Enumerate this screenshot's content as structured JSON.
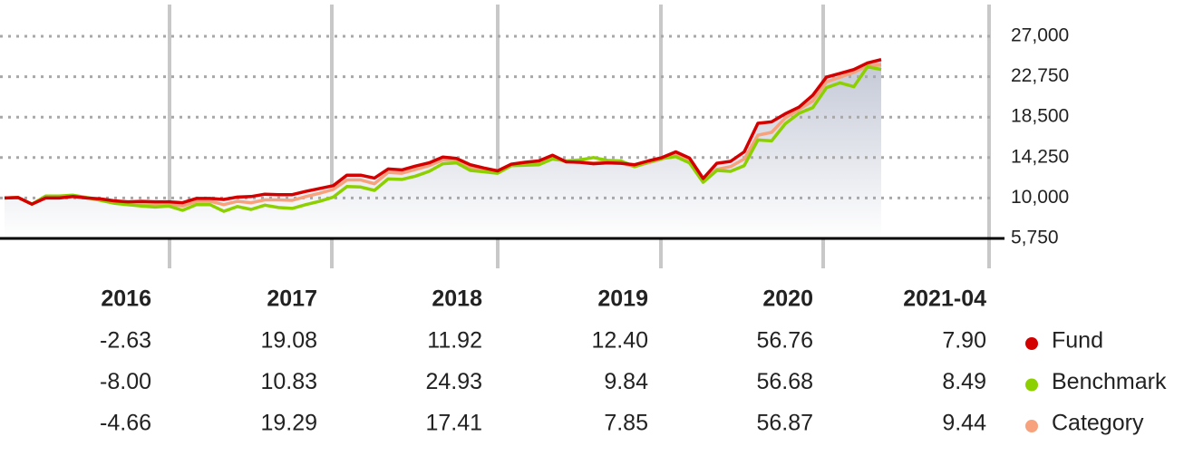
{
  "chart_data": {
    "type": "line",
    "categories": [
      null,
      null,
      null,
      null,
      null,
      null,
      null,
      null,
      null,
      null,
      null,
      null,
      null,
      null,
      null,
      null,
      null,
      null,
      null,
      null,
      null,
      null,
      null,
      null,
      null,
      null,
      null,
      null,
      null,
      null,
      null,
      null,
      null,
      null,
      null,
      null,
      null,
      null,
      null,
      null,
      null,
      null,
      null,
      null,
      null,
      null,
      null,
      null,
      null,
      null,
      null,
      null,
      null,
      null,
      null,
      null,
      null,
      null,
      null,
      null,
      null,
      null,
      null,
      null,
      null
    ],
    "series": [
      {
        "name": "Fund",
        "color": "#d40000",
        "values": [
          10000,
          10050,
          9350,
          10000,
          10000,
          10150,
          10000,
          9900,
          9700,
          9600,
          9650,
          9600,
          9600,
          9500,
          9950,
          9950,
          9850,
          10100,
          10150,
          10400,
          10350,
          10350,
          10700,
          11000,
          11300,
          12400,
          12400,
          12100,
          13050,
          12950,
          13350,
          13700,
          14300,
          14150,
          13500,
          13150,
          12850,
          13550,
          13750,
          13900,
          14500,
          13800,
          13750,
          13600,
          13700,
          13650,
          13500,
          13900,
          14250,
          14850,
          14200,
          12050,
          13650,
          13850,
          14850,
          17850,
          18000,
          18850,
          19550,
          20800,
          22700,
          23100,
          23500,
          24200,
          24550
        ]
      },
      {
        "name": "Benchmark",
        "color": "#8cd000",
        "values": [
          10000,
          10050,
          9350,
          10200,
          10200,
          10300,
          10050,
          9750,
          9450,
          9300,
          9150,
          9050,
          9150,
          8700,
          9300,
          9300,
          8600,
          9100,
          8800,
          9250,
          9000,
          8900,
          9300,
          9650,
          10100,
          11200,
          11150,
          10800,
          12000,
          11950,
          12300,
          12800,
          13600,
          13700,
          12900,
          12750,
          12600,
          13400,
          13450,
          13500,
          14100,
          13900,
          14000,
          14250,
          13950,
          13900,
          13300,
          13800,
          14150,
          14350,
          13700,
          11650,
          12900,
          12800,
          13400,
          16100,
          16000,
          17800,
          18900,
          19500,
          21600,
          22100,
          21700,
          23800,
          23500
        ]
      },
      {
        "name": "Category",
        "color": "#f7a27c",
        "values": [
          10000,
          10050,
          9350,
          10100,
          10100,
          10200,
          10000,
          9800,
          9550,
          9400,
          9400,
          9300,
          9350,
          9150,
          9650,
          9650,
          9300,
          9650,
          9500,
          9800,
          9800,
          9750,
          10150,
          10500,
          10900,
          11900,
          11900,
          11500,
          12700,
          12600,
          13000,
          13400,
          14000,
          14000,
          13200,
          13000,
          12800,
          13500,
          13600,
          13700,
          14300,
          13800,
          13750,
          13700,
          13800,
          13700,
          13300,
          13700,
          14100,
          14600,
          13900,
          11800,
          13000,
          13300,
          14100,
          16600,
          16900,
          18400,
          19300,
          20200,
          22200,
          22700,
          23200,
          23900,
          24000
        ]
      }
    ],
    "ylim": [
      5750,
      27000
    ],
    "yticks": [
      {
        "value": 5750,
        "label": "5,750"
      },
      {
        "value": 10000,
        "label": "10,000"
      },
      {
        "value": 14250,
        "label": "14,250"
      },
      {
        "value": 18500,
        "label": "18,500"
      },
      {
        "value": 22750,
        "label": "22,750"
      },
      {
        "value": 27000,
        "label": "27,000"
      }
    ],
    "grid": true
  },
  "table": {
    "columns": [
      "2016",
      "2017",
      "2018",
      "2019",
      "2020",
      "2021-04"
    ],
    "rows": [
      [
        "-2.63",
        "19.08",
        "11.92",
        "12.40",
        "56.76",
        "7.90"
      ],
      [
        "-8.00",
        "10.83",
        "24.93",
        "9.84",
        "56.68",
        "8.49"
      ],
      [
        "-4.66",
        "19.29",
        "17.41",
        "7.85",
        "56.87",
        "9.44"
      ]
    ]
  }
}
